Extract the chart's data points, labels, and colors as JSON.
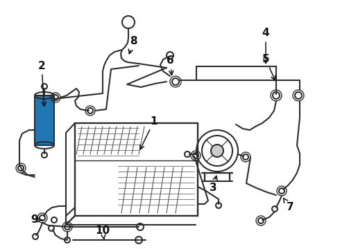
{
  "bg_color": "#ffffff",
  "line_color": "#2d2d2d",
  "label_color": "#111111",
  "figsize": [
    4.9,
    3.6
  ],
  "dpi": 100,
  "lw": 1.5
}
